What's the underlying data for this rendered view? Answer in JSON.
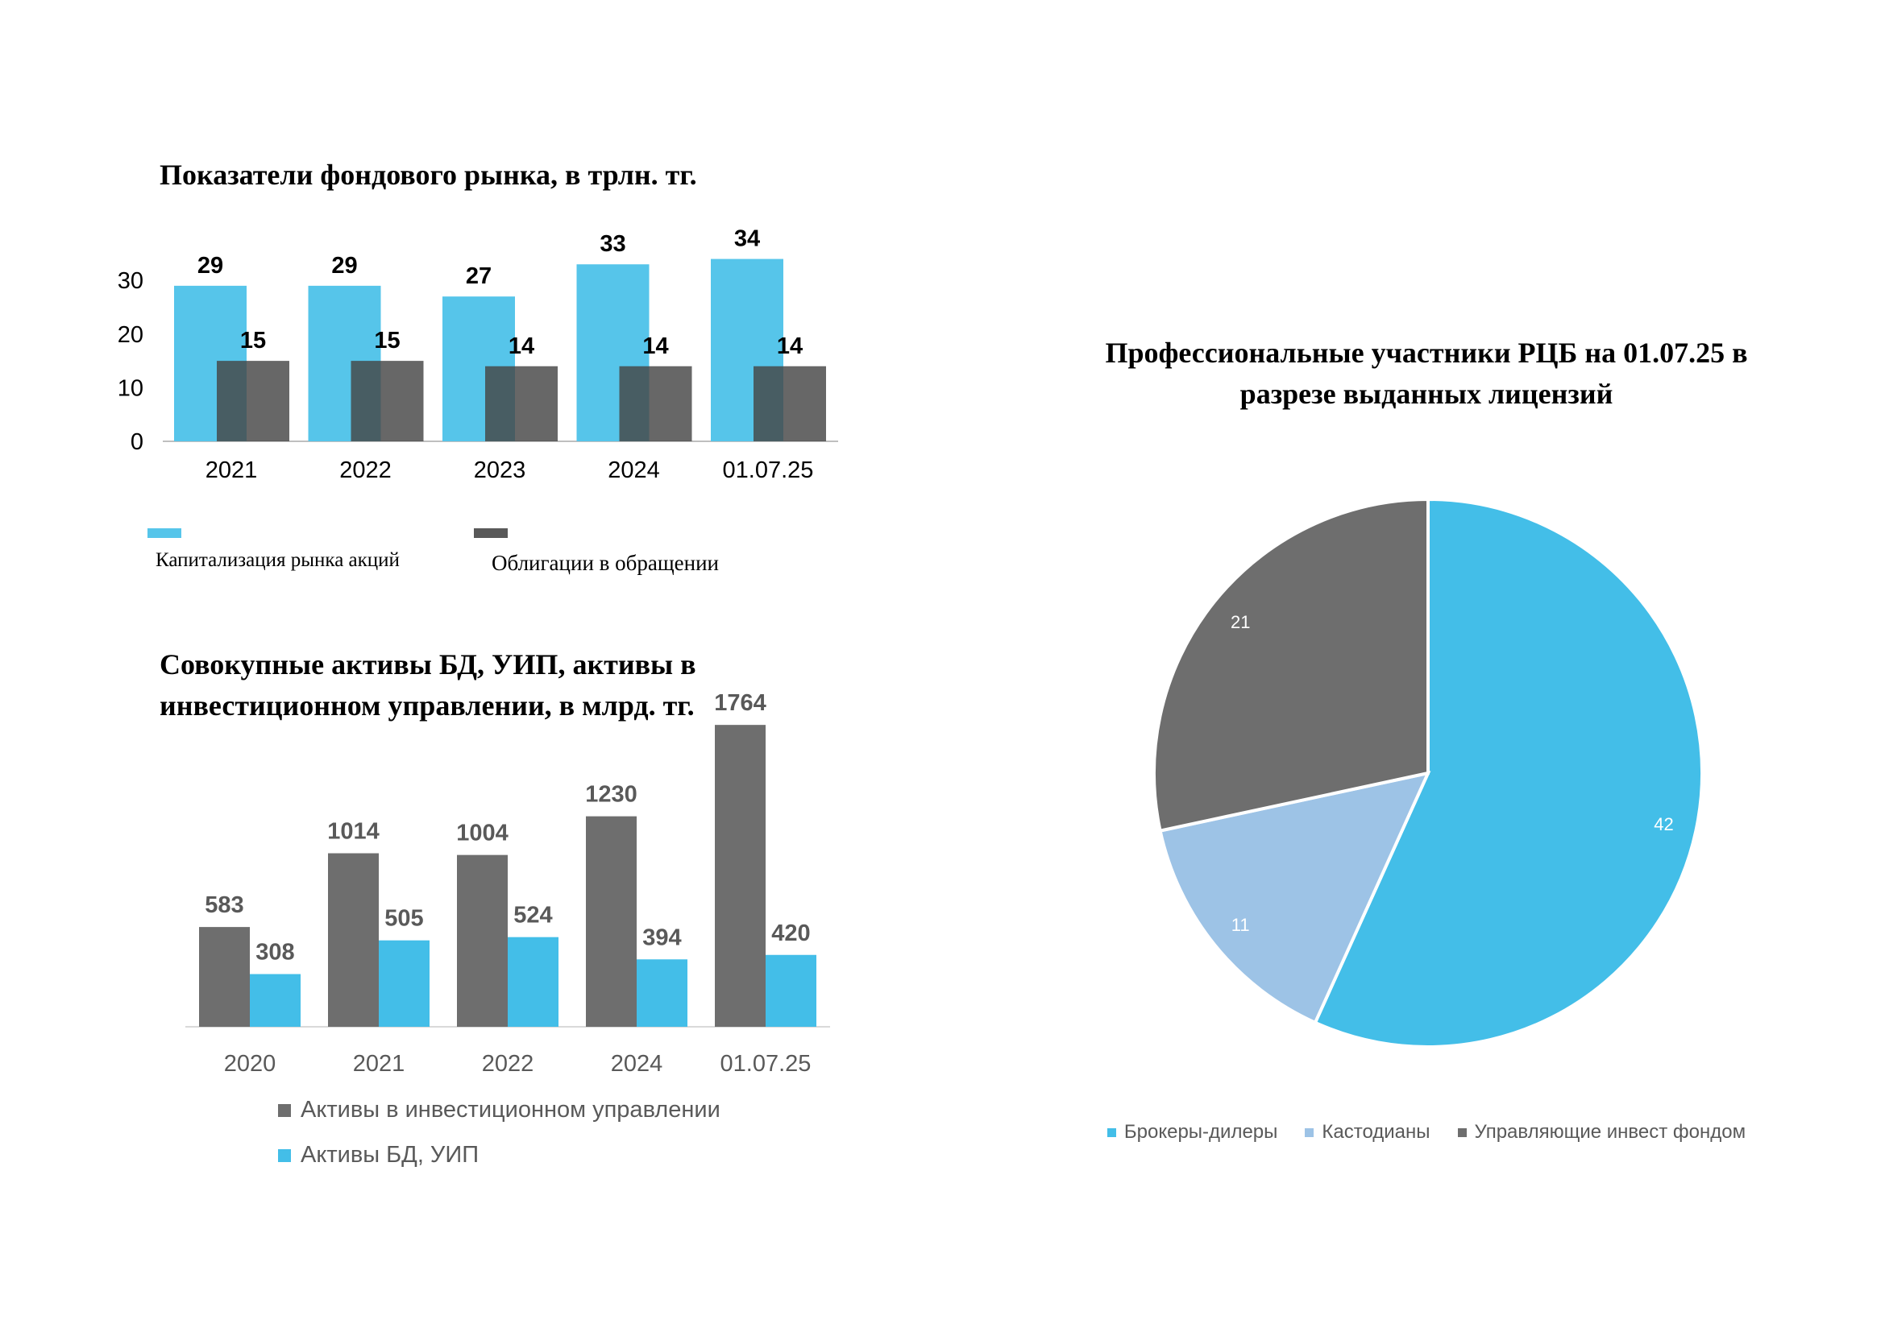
{
  "colors": {
    "cyan": "#56C5EA",
    "dark": "#595959",
    "dark_alpha": "rgba(70,70,70,0.82)",
    "grey": "#6E6E6E",
    "bright_cyan": "#43BEE8",
    "light_blue": "#9DC3E6"
  },
  "chart_data": [
    {
      "type": "bar",
      "title": "Показатели фондового рынка, в трлн. тг.",
      "categories": [
        "2021",
        "2022",
        "2023",
        "2024",
        "01.07.25"
      ],
      "series": [
        {
          "name": "Капитализация рынка акций",
          "values": [
            29,
            29,
            27,
            33,
            34
          ]
        },
        {
          "name": "Облигации в обращении",
          "values": [
            15,
            15,
            14,
            14,
            14
          ]
        }
      ],
      "yticks": [
        "0",
        "10",
        "20",
        "30"
      ],
      "ylim": [
        0,
        35
      ],
      "grid": false,
      "legend": "bottom"
    },
    {
      "type": "bar",
      "title": "Совокупные активы БД, УИП, активы в инвестиционном управлении, в млрд. тг.",
      "categories": [
        "2020",
        "2021",
        "2022",
        "2024",
        "01.07.25"
      ],
      "series": [
        {
          "name": "Активы в инвестиционном управлении",
          "values": [
            583,
            1014,
            1004,
            1230,
            1764
          ]
        },
        {
          "name": "Активы БД, УИП",
          "values": [
            308,
            505,
            524,
            394,
            420
          ]
        }
      ],
      "ylim": [
        0,
        1900
      ],
      "grid": false,
      "legend": "bottom"
    },
    {
      "type": "pie",
      "title": "Профессиональные участники РЦБ на 01.07.25 в разрезе выданных лицензий",
      "slices": [
        {
          "name": "Брокеры-дилеры",
          "value": 42
        },
        {
          "name": "Кастодианы",
          "value": 11
        },
        {
          "name": "Управляющие инвест фондом",
          "value": 21
        }
      ],
      "legend": "bottom"
    }
  ]
}
